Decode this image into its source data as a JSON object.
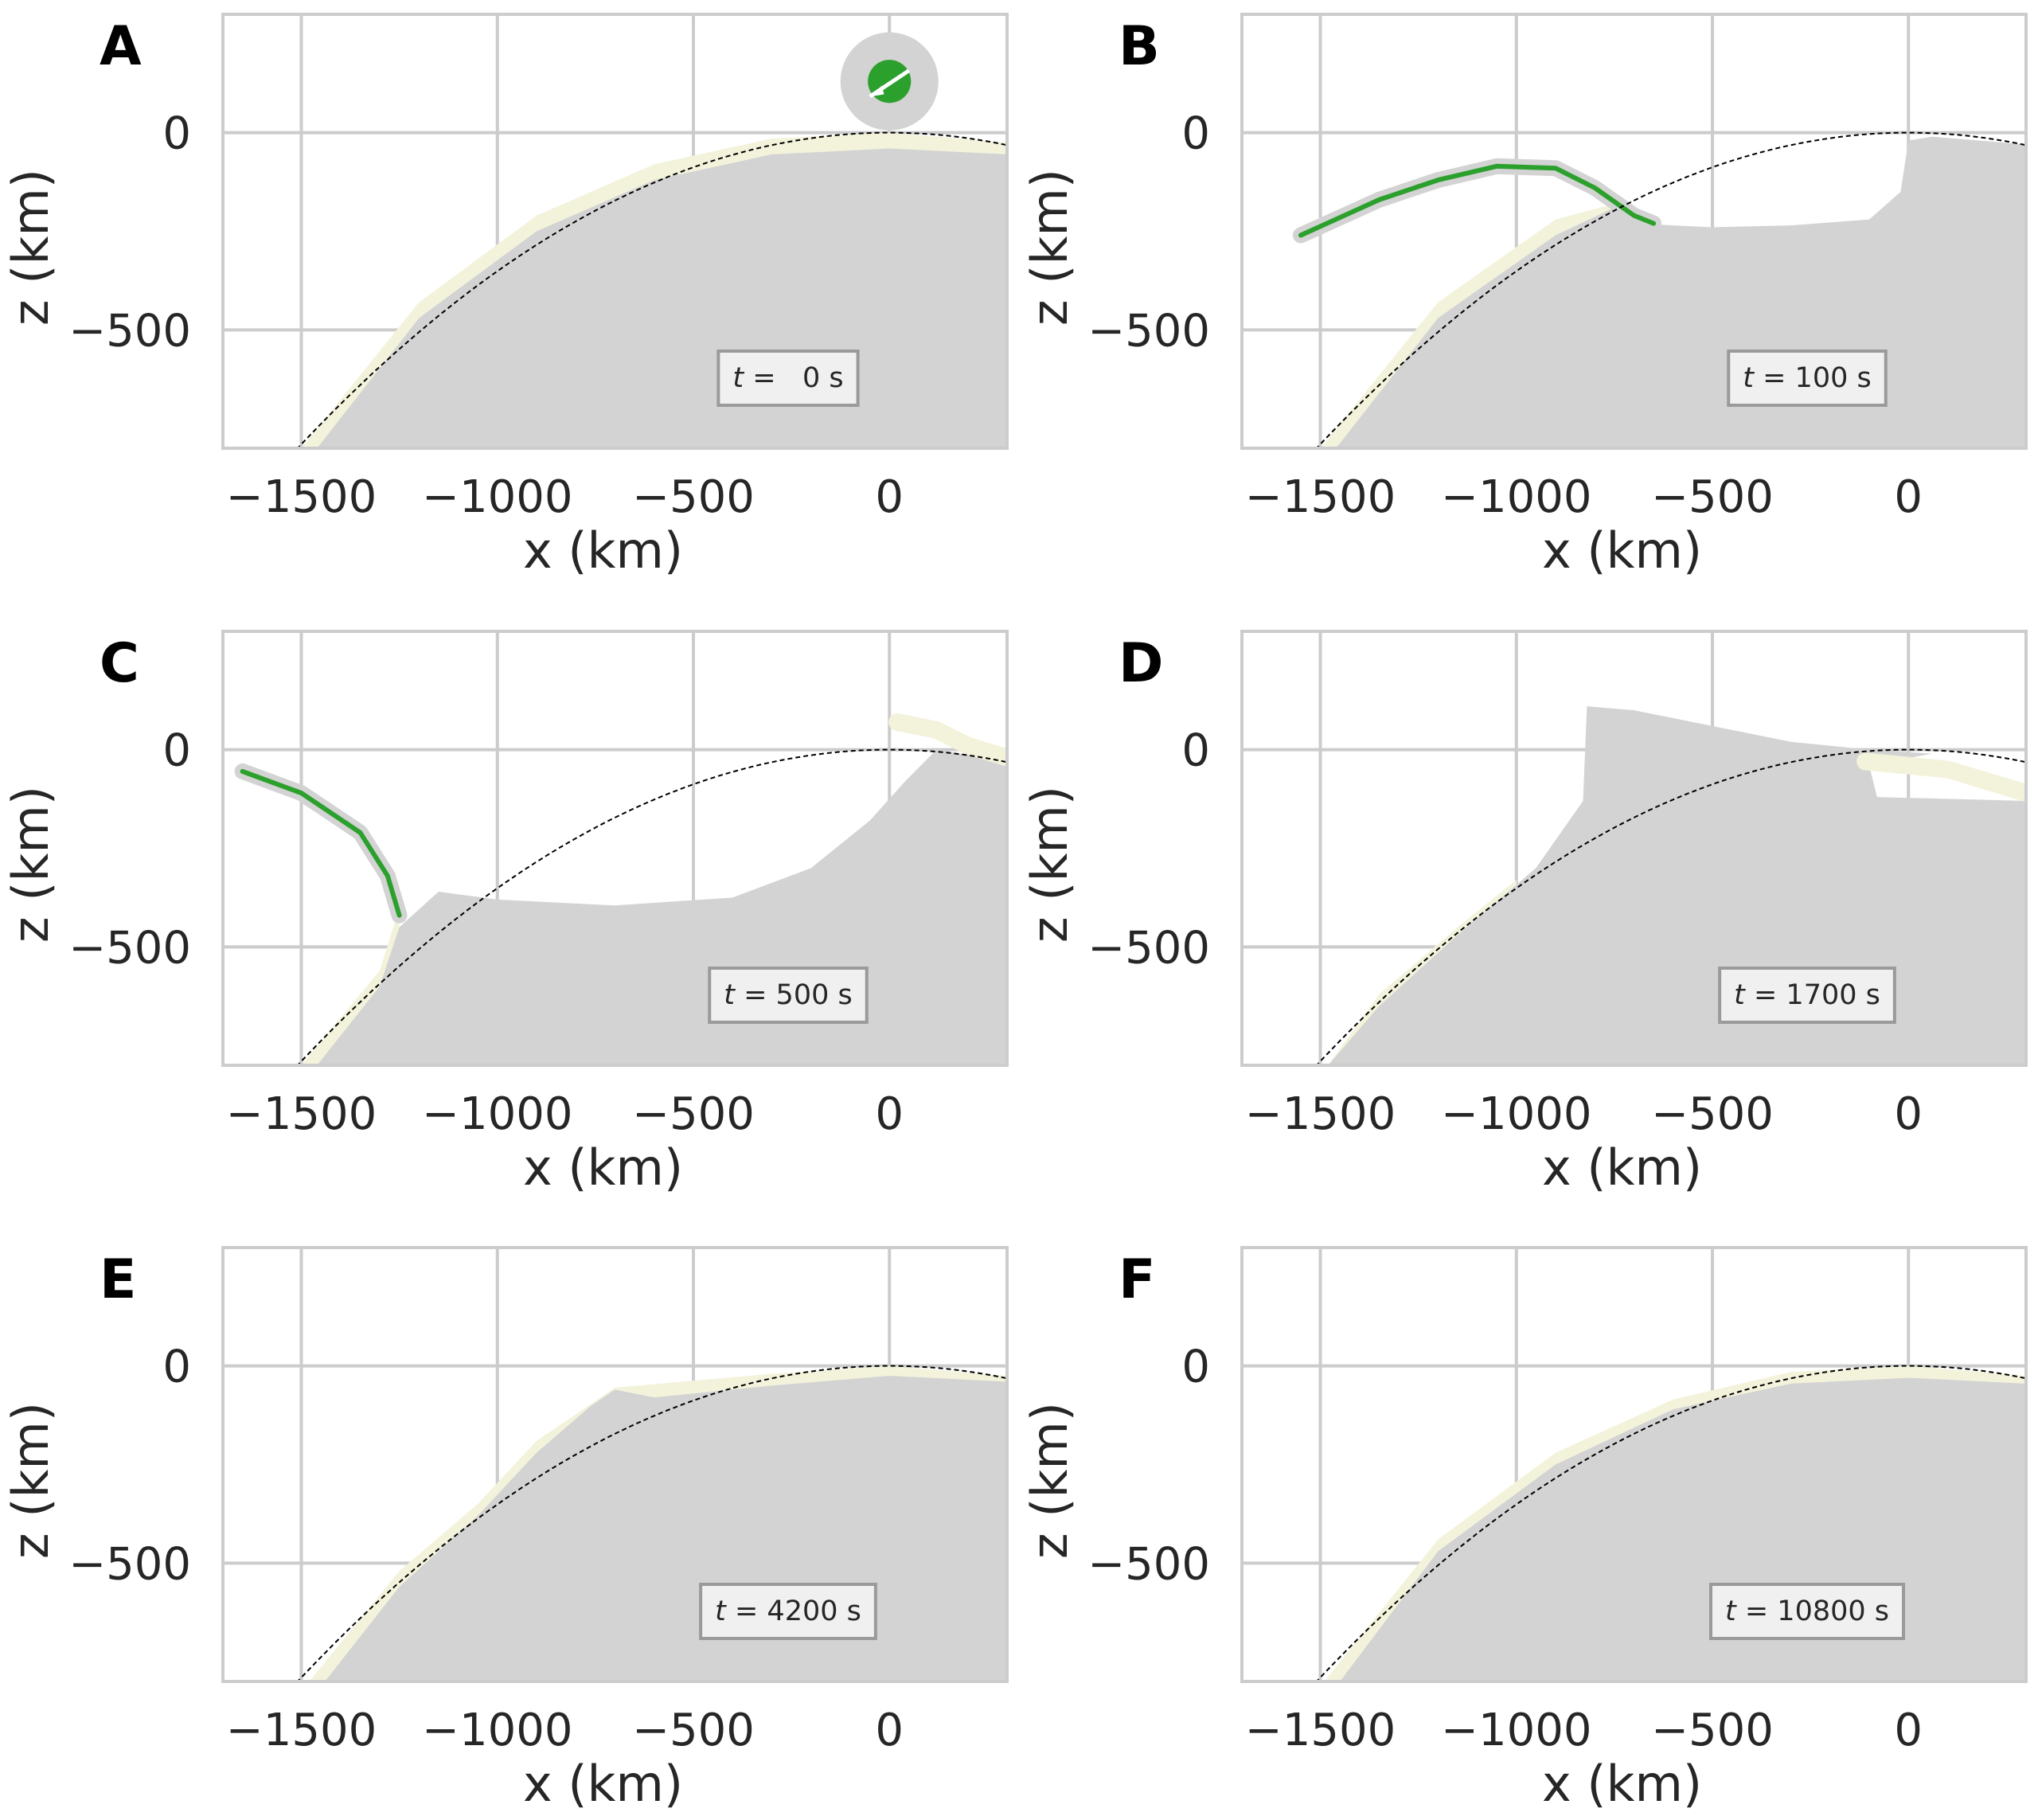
{
  "colors": {
    "background": "#ffffff",
    "grid": "#cccccc",
    "frame": "#cccccc",
    "mantle": "#d3d3d3",
    "crust": "#f3f3dc",
    "impactor": "#2ca02c",
    "reference_surface": "#000000",
    "annotation_box": "#f0f0f0",
    "annotation_border": "#9a9a9a"
  },
  "chart_data": [
    {
      "panel": "A",
      "type": "area",
      "xlabel": "x (km)",
      "ylabel": "z (km)",
      "xlim": [
        -1700,
        300
      ],
      "ylim": [
        -800,
        300
      ],
      "xticks": [
        -1500,
        -1000,
        -500,
        0
      ],
      "xtick_labels": [
        "−1500",
        "−1000",
        "−500",
        "0"
      ],
      "yticks": [
        -500,
        0
      ],
      "ytick_labels": [
        "−500",
        "0"
      ],
      "grid": true,
      "time_label": {
        "italic": "t",
        "text": " =   0 s"
      },
      "mantle_outline": [
        [
          -1460,
          -800
        ],
        [
          -1200,
          -470
        ],
        [
          -900,
          -250
        ],
        [
          -600,
          -120
        ],
        [
          -300,
          -55
        ],
        [
          0,
          -40
        ],
        [
          300,
          -55
        ],
        [
          300,
          -800
        ]
      ],
      "crust_top": [
        [
          -1500,
          -800
        ],
        [
          -1200,
          -430
        ],
        [
          -900,
          -210
        ],
        [
          -600,
          -80
        ],
        [
          -300,
          -15
        ],
        [
          0,
          0
        ],
        [
          300,
          -25
        ]
      ],
      "impactor": {
        "x": 0,
        "z": 130,
        "outer_radius": 125,
        "core_radius": 55
      },
      "reference_curve": {
        "sagitta_at_1500km": 790
      }
    },
    {
      "panel": "B",
      "type": "area",
      "xlabel": "x (km)",
      "ylabel": "z (km)",
      "xlim": [
        -1700,
        300
      ],
      "ylim": [
        -800,
        300
      ],
      "xticks": [
        -1500,
        -1000,
        -500,
        0
      ],
      "xtick_labels": [
        "−1500",
        "−1000",
        "−500",
        "0"
      ],
      "yticks": [
        -500,
        0
      ],
      "ytick_labels": [
        "−500",
        "0"
      ],
      "grid": true,
      "time_label": {
        "italic": "t",
        "text": " = 100 s"
      },
      "mantle_outline": [
        [
          -1460,
          -800
        ],
        [
          -1200,
          -470
        ],
        [
          -900,
          -260
        ],
        [
          -750,
          -190
        ],
        [
          -700,
          -230
        ],
        [
          -500,
          -240
        ],
        [
          -300,
          -235
        ],
        [
          -100,
          -220
        ],
        [
          -20,
          -150
        ],
        [
          0,
          -20
        ],
        [
          60,
          -10
        ],
        [
          300,
          -30
        ],
        [
          300,
          -800
        ]
      ],
      "crust_top": [
        [
          -1500,
          -800
        ],
        [
          -1200,
          -430
        ],
        [
          -900,
          -220
        ],
        [
          -750,
          -180
        ]
      ],
      "ejecta_curtain": [
        [
          -1550,
          -260
        ],
        [
          -1350,
          -170
        ],
        [
          -1200,
          -120
        ],
        [
          -1050,
          -85
        ],
        [
          -900,
          -90
        ],
        [
          -800,
          -140
        ],
        [
          -700,
          -210
        ],
        [
          -650,
          -230
        ]
      ],
      "reference_curve": {
        "sagitta_at_1500km": 790
      }
    },
    {
      "panel": "C",
      "type": "area",
      "xlabel": "x (km)",
      "ylabel": "z (km)",
      "xlim": [
        -1700,
        300
      ],
      "ylim": [
        -800,
        300
      ],
      "xticks": [
        -1500,
        -1000,
        -500,
        0
      ],
      "xtick_labels": [
        "−1500",
        "−1000",
        "−500",
        "0"
      ],
      "yticks": [
        -500,
        0
      ],
      "ytick_labels": [
        "−500",
        "0"
      ],
      "grid": true,
      "time_label": {
        "italic": "t",
        "text": " = 500 s"
      },
      "mantle_outline": [
        [
          -1460,
          -800
        ],
        [
          -1300,
          -600
        ],
        [
          -1250,
          -450
        ],
        [
          -1150,
          -360
        ],
        [
          -1000,
          -380
        ],
        [
          -700,
          -395
        ],
        [
          -400,
          -375
        ],
        [
          -200,
          -300
        ],
        [
          -50,
          -180
        ],
        [
          40,
          -80
        ],
        [
          120,
          0
        ],
        [
          300,
          -30
        ],
        [
          300,
          -800
        ]
      ],
      "crust_top": [
        [
          -1500,
          -800
        ],
        [
          -1300,
          -560
        ],
        [
          -1250,
          -400
        ]
      ],
      "ejecta_curtain": [
        [
          -1650,
          -55
        ],
        [
          -1500,
          -110
        ],
        [
          -1350,
          -210
        ],
        [
          -1280,
          -320
        ],
        [
          -1250,
          -420
        ]
      ],
      "rim_flap": [
        [
          20,
          70
        ],
        [
          120,
          50
        ],
        [
          200,
          10
        ],
        [
          300,
          -20
        ]
      ],
      "reference_curve": {
        "sagitta_at_1500km": 790
      }
    },
    {
      "panel": "D",
      "type": "area",
      "xlabel": "x (km)",
      "ylabel": "z (km)",
      "xlim": [
        -1700,
        300
      ],
      "ylim": [
        -800,
        300
      ],
      "xticks": [
        -1500,
        -1000,
        -500,
        0
      ],
      "xtick_labels": [
        "−1500",
        "−1000",
        "−500",
        "0"
      ],
      "yticks": [
        -500,
        0
      ],
      "ytick_labels": [
        "−500",
        "0"
      ],
      "grid": true,
      "time_label": {
        "italic": "t",
        "text": " = 1700 s"
      },
      "mantle_outline": [
        [
          -1480,
          -800
        ],
        [
          -1350,
          -650
        ],
        [
          -1150,
          -470
        ],
        [
          -950,
          -300
        ],
        [
          -830,
          -130
        ],
        [
          -820,
          110
        ],
        [
          -700,
          100
        ],
        [
          -500,
          60
        ],
        [
          -300,
          20
        ],
        [
          -100,
          0
        ],
        [
          60,
          -10
        ],
        [
          -100,
          -40
        ],
        [
          -80,
          -120
        ],
        [
          300,
          -130
        ],
        [
          300,
          -800
        ]
      ],
      "crust_top": [
        [
          -1480,
          -800
        ],
        [
          -1350,
          -620
        ],
        [
          -1150,
          -450
        ],
        [
          -1000,
          -330
        ]
      ],
      "rim_flap": [
        [
          -110,
          -30
        ],
        [
          100,
          -50
        ],
        [
          300,
          -110
        ]
      ],
      "reference_curve": {
        "sagitta_at_1500km": 790
      }
    },
    {
      "panel": "E",
      "type": "area",
      "xlabel": "x (km)",
      "ylabel": "z (km)",
      "xlim": [
        -1700,
        300
      ],
      "ylim": [
        -800,
        300
      ],
      "xticks": [
        -1500,
        -1000,
        -500,
        0
      ],
      "xtick_labels": [
        "−1500",
        "−1000",
        "−500",
        "0"
      ],
      "yticks": [
        -500,
        0
      ],
      "ytick_labels": [
        "−500",
        "0"
      ],
      "grid": true,
      "time_label": {
        "italic": "t",
        "text": " = 4200 s"
      },
      "mantle_outline": [
        [
          -1440,
          -800
        ],
        [
          -1250,
          -560
        ],
        [
          -1050,
          -380
        ],
        [
          -900,
          -220
        ],
        [
          -760,
          -100
        ],
        [
          -700,
          -60
        ],
        [
          -600,
          -80
        ],
        [
          -300,
          -50
        ],
        [
          0,
          -25
        ],
        [
          300,
          -40
        ],
        [
          300,
          -800
        ]
      ],
      "crust_top": [
        [
          -1480,
          -800
        ],
        [
          -1250,
          -520
        ],
        [
          -1050,
          -350
        ],
        [
          -900,
          -190
        ],
        [
          -700,
          -55
        ],
        [
          -300,
          -20
        ],
        [
          0,
          0
        ],
        [
          300,
          -25
        ]
      ],
      "reference_curve": {
        "sagitta_at_1500km": 790
      }
    },
    {
      "panel": "F",
      "type": "area",
      "xlabel": "x (km)",
      "ylabel": "z (km)",
      "xlim": [
        -1700,
        300
      ],
      "ylim": [
        -800,
        300
      ],
      "xticks": [
        -1500,
        -1000,
        -500,
        0
      ],
      "xtick_labels": [
        "−1500",
        "−1000",
        "−500",
        "0"
      ],
      "yticks": [
        -500,
        0
      ],
      "ytick_labels": [
        "−500",
        "0"
      ],
      "grid": true,
      "time_label": {
        "italic": "t",
        "text": " = 10800 s"
      },
      "mantle_outline": [
        [
          -1450,
          -800
        ],
        [
          -1200,
          -470
        ],
        [
          -900,
          -250
        ],
        [
          -600,
          -110
        ],
        [
          -300,
          -45
        ],
        [
          0,
          -30
        ],
        [
          300,
          -45
        ],
        [
          300,
          -800
        ]
      ],
      "crust_top": [
        [
          -1490,
          -800
        ],
        [
          -1200,
          -440
        ],
        [
          -900,
          -220
        ],
        [
          -600,
          -85
        ],
        [
          -300,
          -15
        ],
        [
          0,
          0
        ],
        [
          300,
          -25
        ]
      ],
      "reference_curve": {
        "sagitta_at_1500km": 790
      }
    }
  ]
}
